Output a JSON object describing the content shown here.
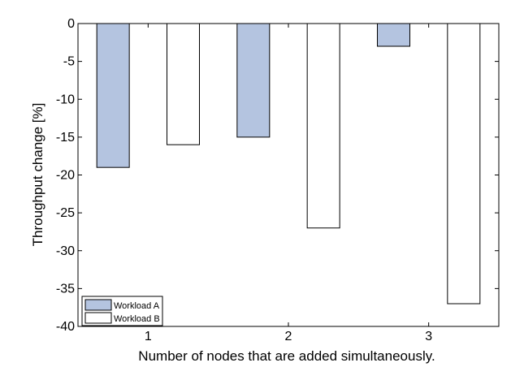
{
  "chart_data": {
    "type": "bar",
    "title": "",
    "xlabel": "Number of nodes that are added simultaneously.",
    "ylabel": "Throughput change [%]",
    "categories": [
      "1",
      "2",
      "3"
    ],
    "series": [
      {
        "name": "Workload A",
        "values": [
          -19,
          -15,
          -3
        ],
        "color": "#b4c4e0"
      },
      {
        "name": "Workload B",
        "values": [
          -16,
          -27,
          -37
        ],
        "color": "#ffffff"
      }
    ],
    "ylim": [
      -40,
      0
    ],
    "yticks": [
      0,
      -5,
      -10,
      -15,
      -20,
      -25,
      -30,
      -35,
      -40
    ],
    "xlim": [
      0.5,
      3.5
    ],
    "grid": false,
    "legend_position": "bottom-left"
  }
}
